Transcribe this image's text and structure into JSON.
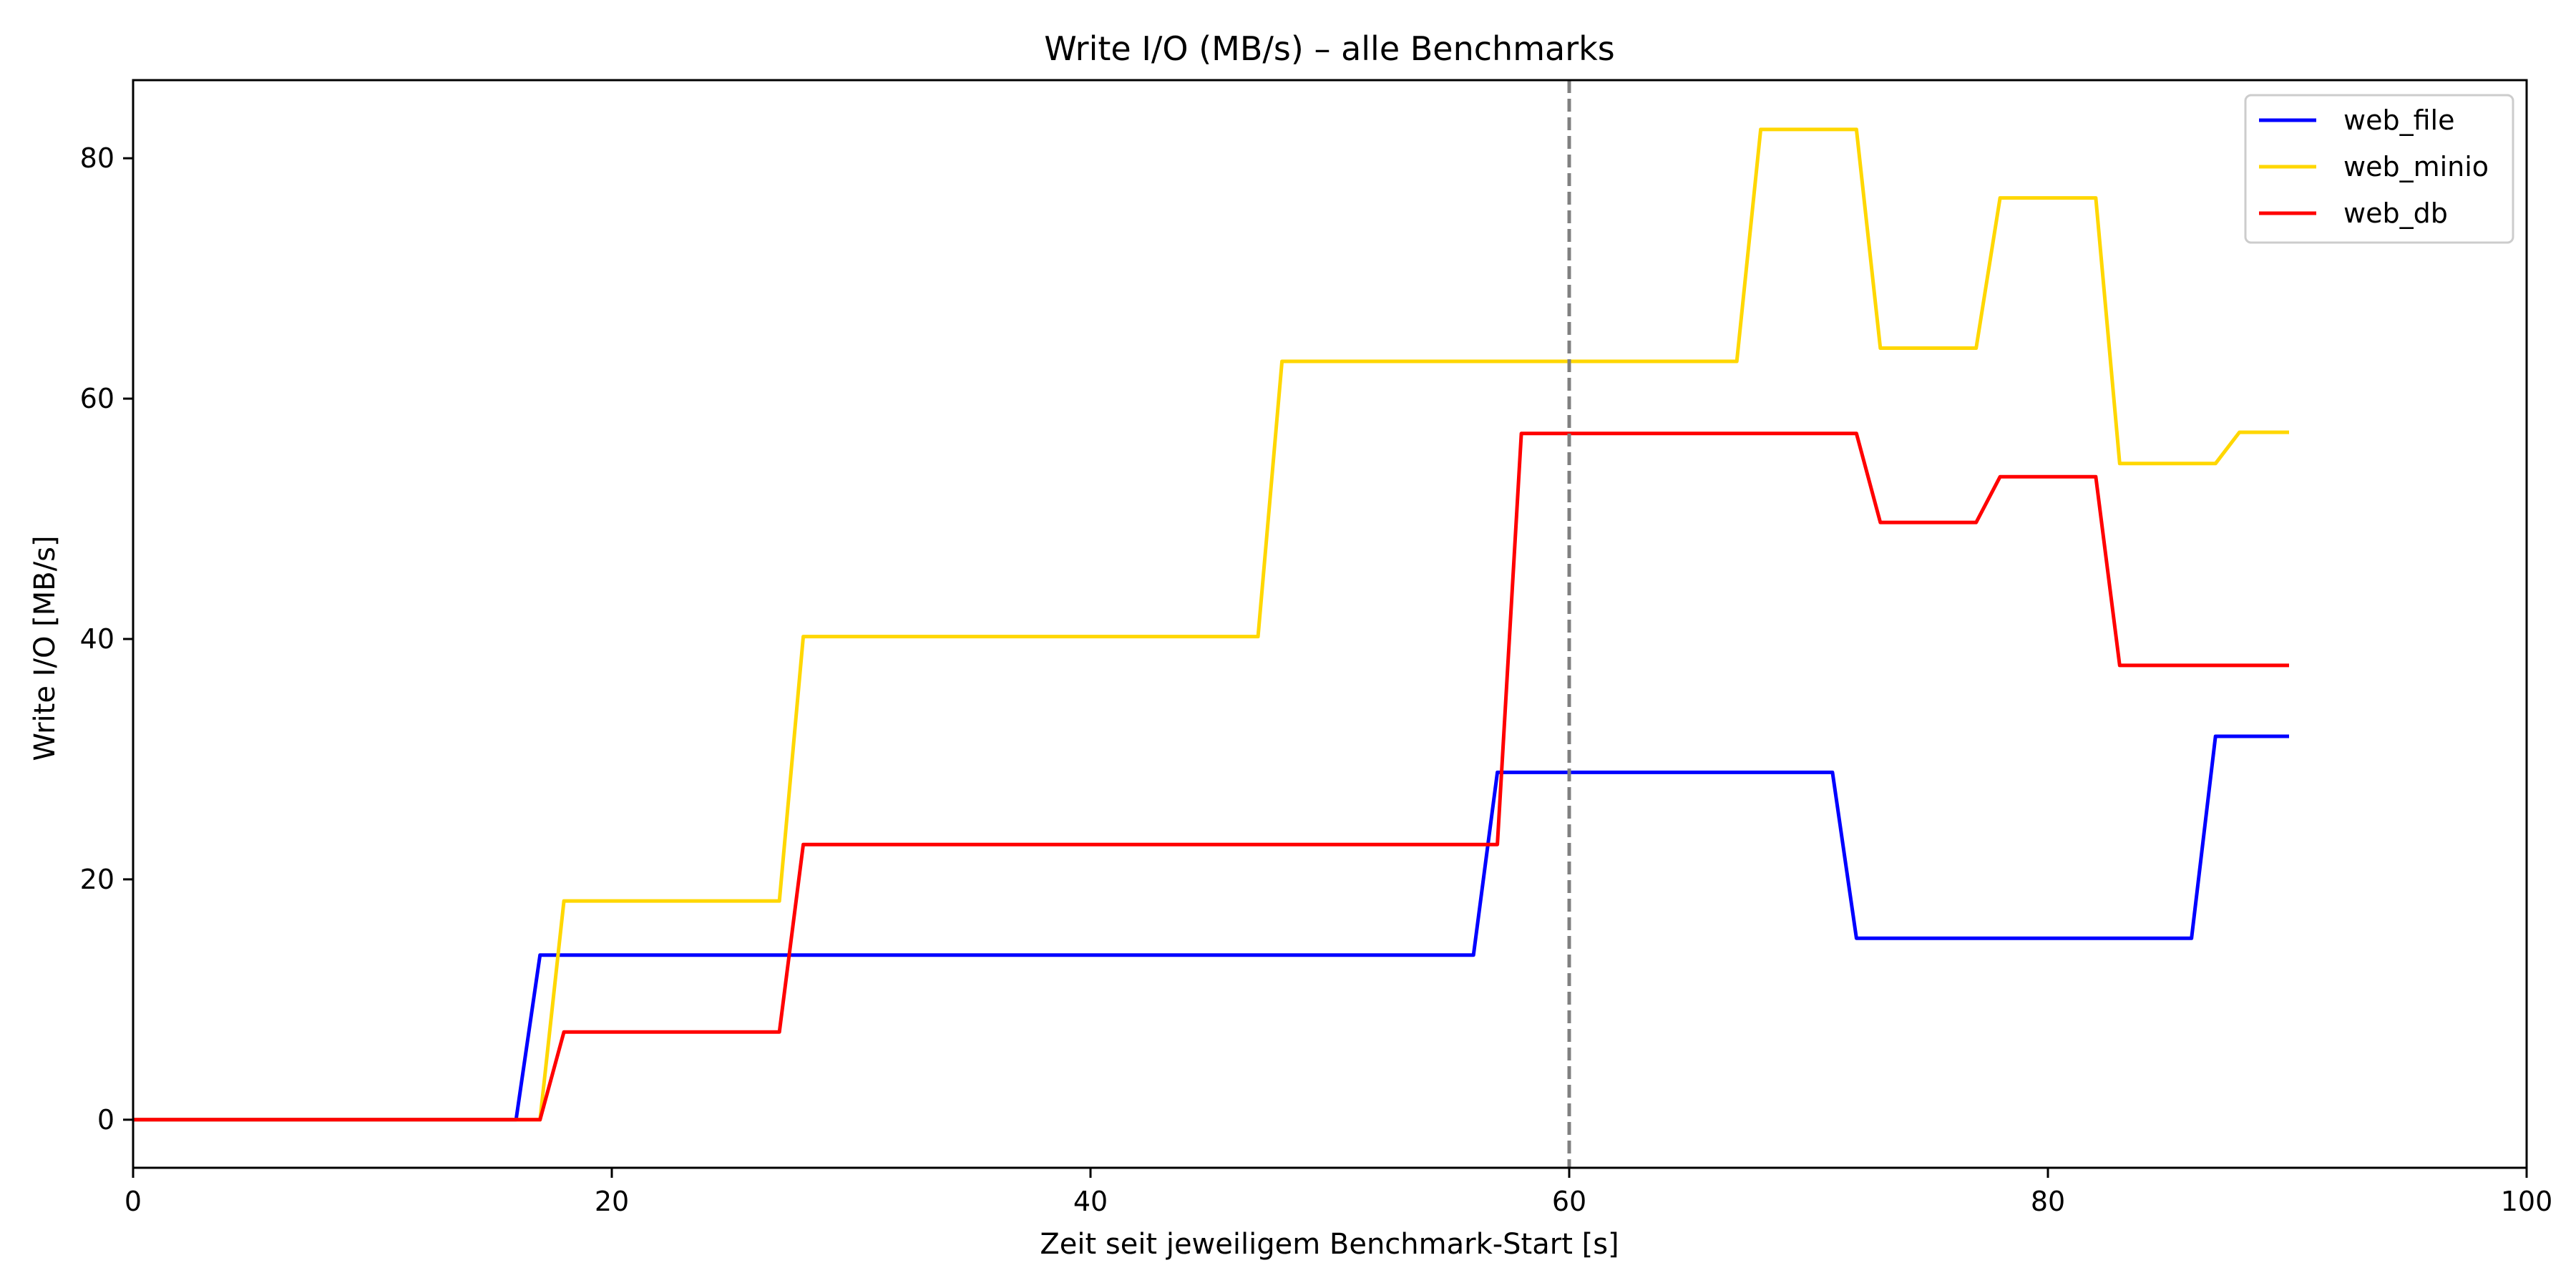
{
  "chart_data": {
    "type": "line",
    "title": "Write I/O (MB/s) – alle Benchmarks",
    "xlabel": "Zeit seit jeweiligem Benchmark-Start [s]",
    "ylabel": "Write I/O [MB/s]",
    "xlim": [
      0,
      100
    ],
    "ylim": [
      -4,
      86.5
    ],
    "x_ticks": [
      0,
      20,
      40,
      60,
      80,
      100
    ],
    "y_ticks": [
      0,
      20,
      40,
      60,
      80
    ],
    "grid": false,
    "legend_position": "top-right",
    "vline": {
      "x": 60,
      "style": "dashed",
      "color": "#808080"
    },
    "series": [
      {
        "name": "web_file",
        "color": "#0000ff",
        "x": [
          0,
          16,
          17,
          56,
          57,
          71,
          72,
          86,
          87,
          90
        ],
        "y": [
          0,
          0,
          13.7,
          13.7,
          28.9,
          28.9,
          15.1,
          15.1,
          31.9,
          31.9
        ]
      },
      {
        "name": "web_minio",
        "color": "#ffd700",
        "x": [
          0,
          17,
          18,
          27,
          28,
          47,
          48,
          67,
          68,
          72,
          73,
          77,
          78,
          82,
          83,
          87,
          88,
          90
        ],
        "y": [
          0,
          0,
          18.2,
          18.2,
          40.2,
          40.2,
          63.1,
          63.1,
          82.4,
          82.4,
          64.2,
          64.2,
          76.7,
          76.7,
          54.6,
          54.6,
          57.2,
          57.2
        ]
      },
      {
        "name": "web_db",
        "color": "#ff0000",
        "x": [
          0,
          17,
          18,
          27,
          28,
          57,
          58,
          72,
          73,
          77,
          78,
          82,
          83,
          90
        ],
        "y": [
          0,
          0,
          7.3,
          7.3,
          22.9,
          22.9,
          57.1,
          57.1,
          49.7,
          49.7,
          53.5,
          53.5,
          37.8,
          37.8
        ]
      }
    ]
  }
}
